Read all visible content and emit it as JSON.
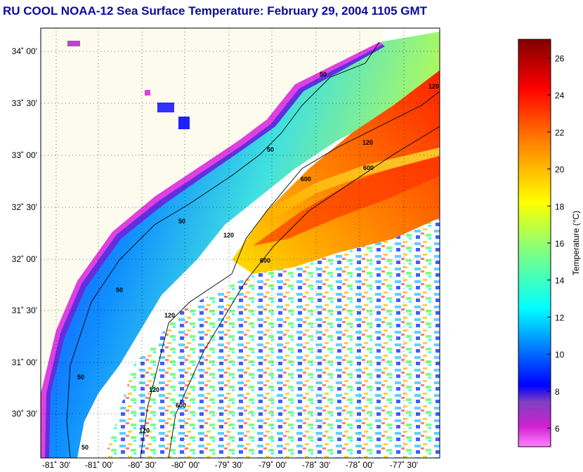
{
  "title": "RU COOL  NOAA-12  Sea Surface Temperature:  February 29, 2004 1105 GMT",
  "map": {
    "lat_labels": [
      "34˚ 00'",
      "33˚ 30'",
      "33˚ 00'",
      "32˚ 30'",
      "32˚ 00'",
      "31˚ 30'",
      "31˚ 00'",
      "30˚ 30'"
    ],
    "lon_labels": [
      "-81˚ 30'",
      "-81˚ 00'",
      "-80˚ 30'",
      "-80˚ 00'",
      "-79˚ 30'",
      "-79˚ 00'",
      "-78˚ 30'",
      "-78˚ 00'",
      "-77˚ 30'"
    ],
    "contour_labels": [
      "50",
      "120",
      "600",
      "50",
      "120",
      "600",
      "50",
      "120",
      "50",
      "120",
      "600",
      "120",
      "50",
      "50",
      "600",
      "120"
    ]
  },
  "colorbar": {
    "label": "Temperature (°C)",
    "ticks": [
      "26",
      "24",
      "22",
      "20",
      "18",
      "16",
      "14",
      "12",
      "10",
      "8",
      "6"
    ],
    "range": [
      5,
      27
    ],
    "colors": {
      "bottom": "#ff80ff",
      "magenta": "#d020d0",
      "purple": "#8040c0",
      "blue": "#0000ff",
      "cyan": "#00ffff",
      "green": "#80ff80",
      "yellow": "#ffff00",
      "orange": "#ff8000",
      "red": "#ff0000",
      "darkred": "#800000"
    }
  }
}
